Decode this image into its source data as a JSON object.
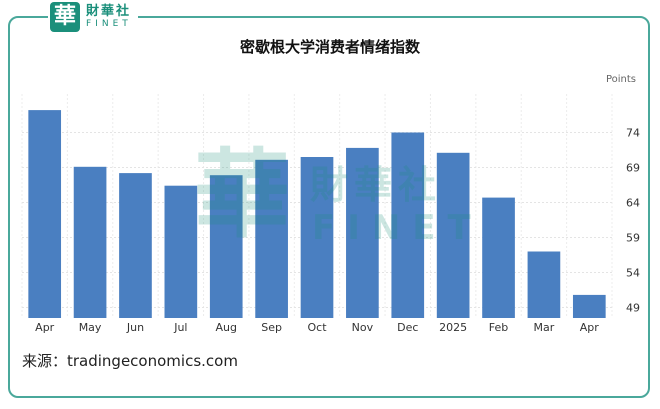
{
  "brand": {
    "logo_char": "華",
    "name_cn": "財華社",
    "name_en": "FINET",
    "accent_color": "#1b8f7b",
    "border_color": "#4aa89b"
  },
  "source_text": "来源：tradingeconomics.com",
  "chart_data": {
    "type": "bar",
    "title": "密歇根大学消费者情绪指数",
    "units_label": "Points",
    "categories": [
      "Apr",
      "May",
      "Jun",
      "Jul",
      "Aug",
      "Sep",
      "Oct",
      "Nov",
      "Dec",
      "2025",
      "Feb",
      "Mar",
      "Apr"
    ],
    "values": [
      77.2,
      69.1,
      68.2,
      66.4,
      67.9,
      70.1,
      70.5,
      71.8,
      74.0,
      71.1,
      64.7,
      57.0,
      50.8
    ],
    "yticks": [
      49,
      54,
      59,
      64,
      69,
      74
    ],
    "ylim": [
      47.5,
      79.5
    ],
    "bar_color": "#4a7fc1",
    "grid": true,
    "yaxis_position": "right"
  }
}
